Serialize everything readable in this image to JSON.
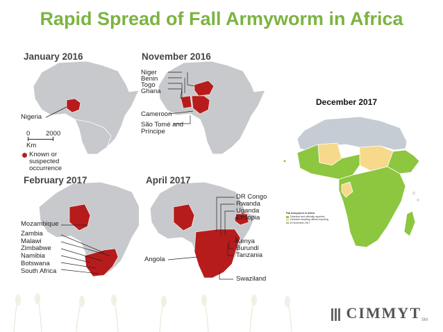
{
  "title": "Rapid Spread of Fall Armyworm in Africa",
  "panels": {
    "jan2016": {
      "title": "January 2016",
      "labels": [
        "Nigeria"
      ],
      "scale_zero": "0",
      "scale_max": "2000",
      "scale_unit": "Km",
      "legend_text": "Known or suspected occurrence"
    },
    "nov2016": {
      "title": "November 2016",
      "labels_left": [
        "Niger",
        "Benin",
        "Togo",
        "Ghana"
      ],
      "labels_bottom": [
        "Cameroon",
        "São Tomé and Príncipe"
      ]
    },
    "feb2017": {
      "title": "February 2017",
      "labels": [
        "Mozambique",
        "Zambia",
        "Malawi",
        "Zimbabwe",
        "Namibia",
        "Botswana",
        "South Africa"
      ]
    },
    "apr2017": {
      "title": "April 2017",
      "labels_left": [
        "Angola"
      ],
      "labels_right": [
        "DR Congo",
        "Rwanda",
        "Uganda",
        "Ethiopia",
        "Kenya",
        "Burundi",
        "Tanzania",
        "Swaziland"
      ]
    },
    "dec2017": {
      "title": "December 2017",
      "legend_title": "Fall Armyworm in Africa",
      "legend_items": [
        "Detected and officially reported",
        "Detected awaiting official reporting"
      ],
      "legend_date": "As of December 2017"
    }
  },
  "colors": {
    "title": "#7cb342",
    "occurrence": "#b71c1c",
    "land": "#c7c9cc",
    "detected": "#8dc63f",
    "awaiting": "#f7d98b",
    "not_reported": "#c5ccd3"
  },
  "logo": {
    "name": "CIMMYT",
    "mark": "SM"
  }
}
